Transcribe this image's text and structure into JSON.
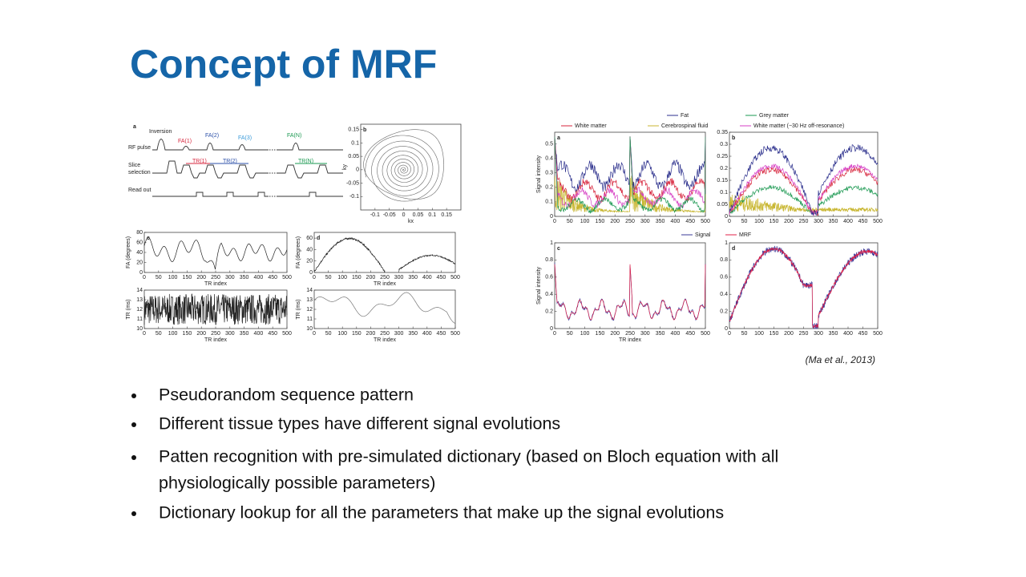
{
  "title": "Concept of MRF",
  "citation": "(Ma et al., 2013)",
  "bullets": [
    "Pseudorandom sequence pattern",
    "Different tissue types have different signal evolutions",
    [
      "Patten recognition with pre-simulated dictionary (based on Bloch equation with all",
      "physiologically possible parameters)"
    ],
    "Dictionary lookup for all the parameters that make up the signal evolutions"
  ],
  "figure_left": {
    "sequence": {
      "label": "a",
      "inversion": "Inversion",
      "rf_pulse": "RF pulse",
      "fa_labels": [
        "FA(1)",
        "FA(2)",
        "FA(3)",
        "FA(N)"
      ],
      "slice_selection": [
        "Slice",
        "selection"
      ],
      "tr_labels": [
        "TR(1)",
        "TR(2)",
        "TR(N)"
      ],
      "read_out": "Read out"
    },
    "panels": [
      {
        "label": "b",
        "xlabel": "kx",
        "ylabel": "ky",
        "xticks": [
          -0.1,
          -0.05,
          0,
          0.05,
          0.1,
          0.15
        ],
        "xlim": [
          -0.15,
          0.2
        ],
        "yticks": [
          -0.1,
          -0.05,
          0,
          0.05,
          0.1,
          0.15
        ],
        "ylim": [
          -0.15,
          0.17
        ]
      },
      {
        "label": "c",
        "ylabel": "FA (degrees)",
        "xlabel": "TR index",
        "xticks": [
          0,
          50,
          100,
          150,
          200,
          250,
          300,
          350,
          400,
          450,
          500
        ],
        "xlim": [
          0,
          500
        ],
        "yticks": [
          0,
          20,
          40,
          60,
          80
        ],
        "ylim": [
          0,
          80
        ]
      },
      {
        "ylabel": "TR (ms)",
        "xlabel": "TR index",
        "xticks": [
          0,
          50,
          100,
          150,
          200,
          250,
          300,
          350,
          400,
          450,
          500
        ],
        "xlim": [
          0,
          500
        ],
        "yticks": [
          10,
          11,
          12,
          13,
          14
        ],
        "ylim": [
          10,
          14
        ]
      },
      {
        "label": "d",
        "ylabel": "FA (degrees)",
        "xlabel": "TR index",
        "xticks": [
          0,
          50,
          100,
          150,
          200,
          250,
          300,
          350,
          400,
          450,
          500
        ],
        "xlim": [
          0,
          500
        ],
        "yticks": [
          0,
          20,
          40,
          60
        ],
        "ylim": [
          0,
          70
        ]
      },
      {
        "ylabel": "TR (ms)",
        "xlabel": "TR index",
        "xticks": [
          0,
          50,
          100,
          150,
          200,
          250,
          300,
          350,
          400,
          450,
          500
        ],
        "xlim": [
          0,
          500
        ],
        "yticks": [
          10,
          11,
          12,
          13,
          14
        ],
        "ylim": [
          10,
          14
        ]
      }
    ]
  },
  "figure_right": {
    "legend_top": [
      {
        "name": "Fat",
        "color": "#2b2f8c"
      },
      {
        "name": "Grey matter",
        "color": "#1a9850"
      },
      {
        "name": "White matter",
        "color": "#d7263d"
      },
      {
        "name": "Cerebrospinal fluid",
        "color": "#c8b630"
      },
      {
        "name": "White matter (−30 Hz off-resonance)",
        "color": "#d63fc4"
      }
    ],
    "legend_bottom": [
      {
        "name": "Signal",
        "color": "#3b3b9a"
      },
      {
        "name": "MRF",
        "color": "#e0224a"
      }
    ],
    "panels": [
      {
        "label": "a",
        "ylabel": "Signal intensity",
        "xticks": [
          0,
          50,
          100,
          150,
          200,
          250,
          300,
          350,
          400,
          450,
          500
        ],
        "xlim": [
          0,
          500
        ],
        "yticks": [
          0,
          0.1,
          0.2,
          0.3,
          0.4,
          0.5
        ],
        "ylim": [
          0,
          0.58
        ]
      },
      {
        "label": "b",
        "xticks": [
          0,
          50,
          100,
          150,
          200,
          250,
          300,
          350,
          400,
          450,
          500
        ],
        "xlim": [
          0,
          500
        ],
        "yticks": [
          0,
          0.05,
          0.1,
          0.15,
          0.2,
          0.25,
          0.3,
          0.35
        ],
        "ylim": [
          0,
          0.35
        ]
      },
      {
        "label": "c",
        "ylabel": "Signal intensity",
        "xlabel": "TR index",
        "xticks": [
          0,
          50,
          100,
          150,
          200,
          250,
          300,
          350,
          400,
          450,
          500
        ],
        "xlim": [
          0,
          500
        ],
        "yticks": [
          0,
          0.2,
          0.4,
          0.6,
          0.8,
          1
        ],
        "ylim": [
          0,
          1
        ]
      },
      {
        "label": "d",
        "xticks": [
          0,
          50,
          100,
          150,
          200,
          250,
          300,
          350,
          400,
          450,
          500
        ],
        "xlim": [
          0,
          500
        ],
        "yticks": [
          0,
          0.2,
          0.4,
          0.6,
          0.8,
          1
        ],
        "ylim": [
          0,
          1
        ]
      }
    ]
  }
}
